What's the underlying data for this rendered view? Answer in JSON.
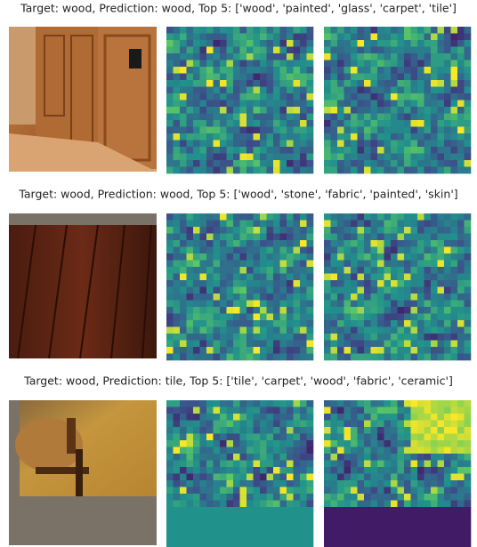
{
  "rows": [
    {
      "title": "Target: wood, Prediction: wood, Top 5: ['wood', 'painted', 'glass', 'carpet', 'tile']"
    },
    {
      "title": "Target: wood, Prediction: wood, Top 5: ['wood', 'stone', 'fabric', 'painted', 'skin']"
    },
    {
      "title": "Target: wood, Prediction: tile, Top 5: ['tile', 'carpet', 'wood', 'fabric', 'ceramic']"
    }
  ]
}
